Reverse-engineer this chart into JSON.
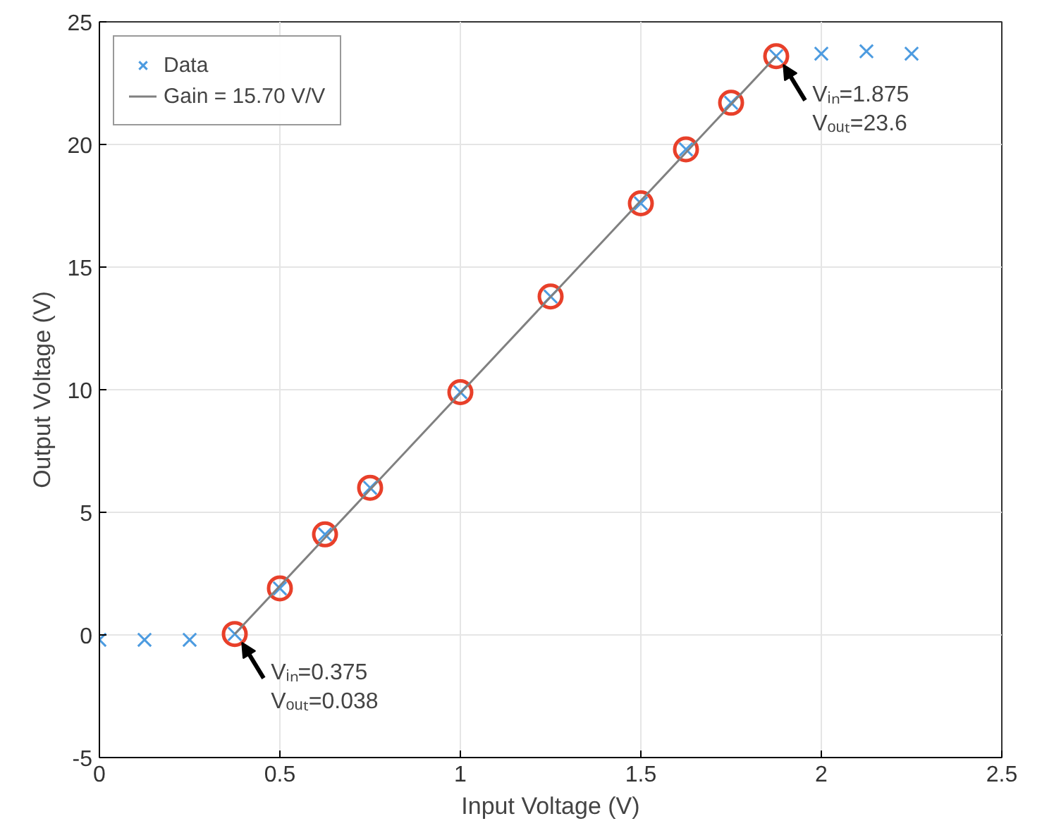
{
  "chart_data": {
    "type": "scatter",
    "xlabel": "Input Voltage (V)",
    "ylabel": "Output Voltage (V)",
    "xlim": [
      0,
      2.5
    ],
    "xticks": [
      0,
      0.5,
      1,
      1.5,
      2,
      2.5
    ],
    "ylim": [
      -5,
      25
    ],
    "yticks": [
      -5,
      0,
      5,
      10,
      15,
      20,
      25
    ],
    "grid": true,
    "legend": "top left",
    "series": [
      {
        "name": "Data",
        "marker": "cross",
        "color": "#4c9be0",
        "x": [
          0,
          0.125,
          0.25,
          0.375,
          0.5,
          0.625,
          0.75,
          1.0,
          1.25,
          1.5,
          1.625,
          1.75,
          1.875,
          2.0,
          2.125,
          2.25
        ],
        "values": [
          -0.2,
          -0.2,
          -0.2,
          0.038,
          1.9,
          4.1,
          6.0,
          9.9,
          13.8,
          17.6,
          19.8,
          21.7,
          23.6,
          23.7,
          23.8,
          23.7
        ]
      },
      {
        "marker": "circle",
        "color": "#e8402a",
        "x": [
          0.375,
          0.5,
          0.625,
          0.75,
          1.0,
          1.25,
          1.5,
          1.625,
          1.75,
          1.875
        ],
        "values": [
          0.038,
          1.9,
          4.1,
          6.0,
          9.9,
          13.8,
          17.6,
          19.8,
          21.7,
          23.6
        ]
      },
      {
        "name": "Gain = 15.70 V/V",
        "type": "line",
        "marker": "none",
        "line_style": "solid",
        "color": "#808080",
        "x": [
          0.375,
          1.875
        ],
        "values": [
          0.038,
          23.6
        ]
      }
    ],
    "annotations": [
      {
        "text": "Vᵢₙ=0.375\nVₒᵤₜ=0.038",
        "x": 0.375,
        "y": 0.038
      },
      {
        "text": "Vᵢₙ=1.875\nVₒᵤₜ=23.6",
        "x": 1.875,
        "y": 23.6
      }
    ]
  }
}
